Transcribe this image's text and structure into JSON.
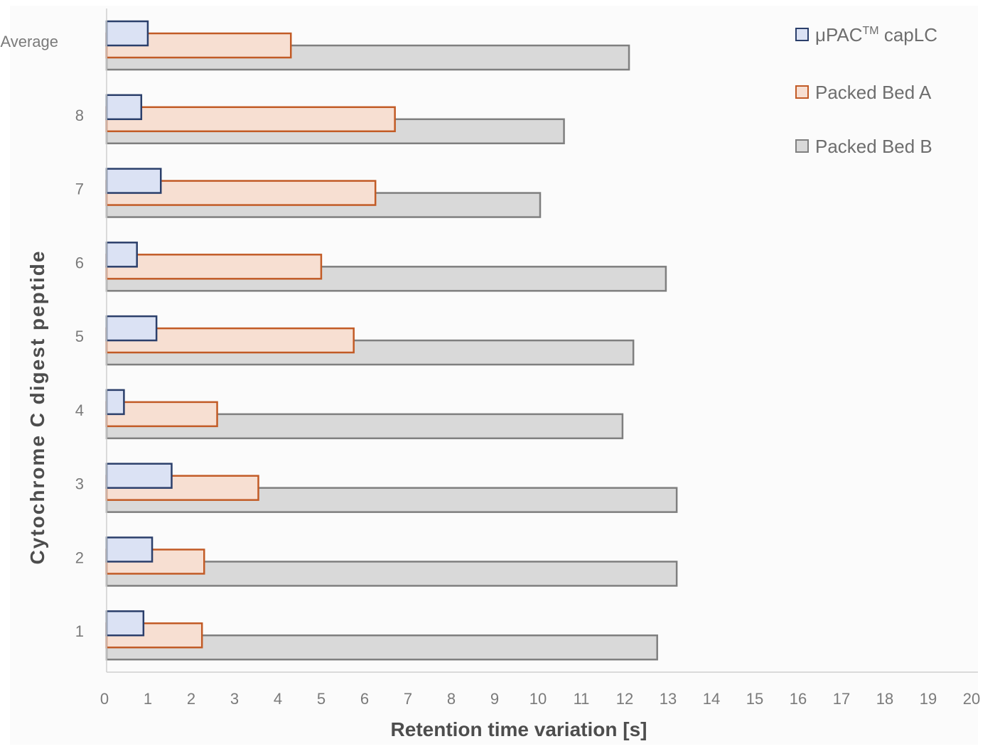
{
  "chart_data": {
    "type": "bar",
    "orientation": "horizontal",
    "categories": [
      "1",
      "2",
      "3",
      "4",
      "5",
      "6",
      "7",
      "8",
      "Average"
    ],
    "series": [
      {
        "name_parts": [
          "μPAC",
          "TM",
          " capLC"
        ],
        "values": [
          0.85,
          1.05,
          1.5,
          0.4,
          1.15,
          0.7,
          1.25,
          0.8,
          0.95
        ],
        "fill": "#dbe2f4",
        "stroke": "#2b3f6b"
      },
      {
        "name": "Packed Bed A",
        "values": [
          2.2,
          2.25,
          3.5,
          2.55,
          5.7,
          4.95,
          6.2,
          6.65,
          4.25
        ],
        "fill": "#f7dfd2",
        "stroke": "#c25b26"
      },
      {
        "name": "Packed Bed B",
        "values": [
          12.7,
          13.15,
          13.15,
          11.9,
          12.15,
          12.9,
          10.0,
          10.55,
          12.05
        ],
        "fill": "#d9d9d9",
        "stroke": "#7f7f7f"
      }
    ],
    "xlim": [
      0,
      20
    ],
    "x_ticks": [
      "0",
      "1",
      "2",
      "3",
      "4",
      "5",
      "6",
      "7",
      "8",
      "9",
      "10",
      "11",
      "12",
      "13",
      "14",
      "15",
      "16",
      "17",
      "18",
      "19",
      "20"
    ],
    "xlabel": "Retention time variation [s]",
    "ylabel": "Cytochrome C digest peptide",
    "grid": false,
    "legend_position": "top-right"
  }
}
